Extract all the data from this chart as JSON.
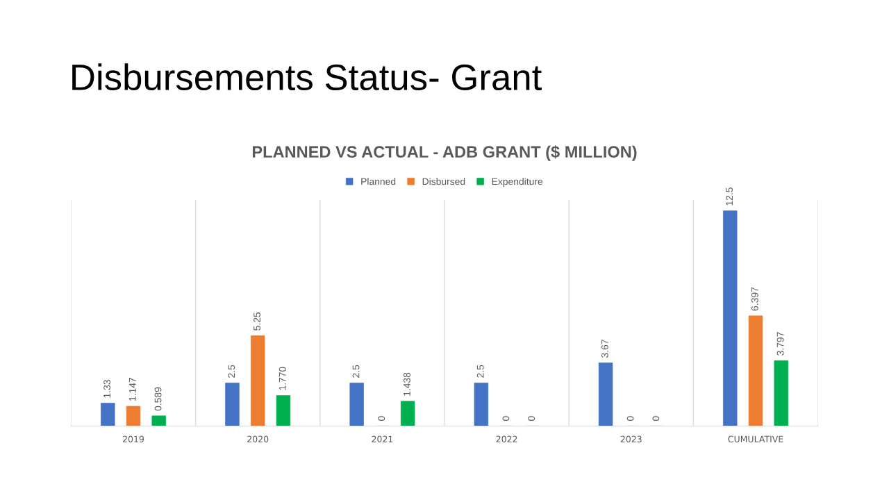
{
  "chart_data": {
    "type": "bar",
    "title": "Disbursements Status- Grant",
    "subtitle": "PLANNED VS ACTUAL - ADB GRANT ($ MILLION)",
    "categories": [
      "2019",
      "2020",
      "2021",
      "2022",
      "2023",
      "CUMULATIVE"
    ],
    "series": [
      {
        "name": "Planned",
        "color": "#4472c4",
        "values": [
          1.33,
          2.5,
          2.5,
          2.5,
          3.67,
          12.5
        ],
        "value_labels": [
          "1.33",
          "2.5",
          "2.5",
          "2.5",
          "3.67",
          "12.5"
        ]
      },
      {
        "name": "Disbursed",
        "color": "#ed7d31",
        "values": [
          1.147,
          5.25,
          0,
          0,
          0,
          6.397
        ],
        "value_labels": [
          "1.147",
          "5.25",
          "0",
          "0",
          "0",
          "6.397"
        ]
      },
      {
        "name": "Expenditure",
        "color": "#00b050",
        "values": [
          0.589,
          1.77,
          1.438,
          0,
          0,
          3.797
        ],
        "value_labels": [
          "0.589",
          "1.770",
          "1.438",
          "0",
          "0",
          "3.797"
        ]
      }
    ],
    "tick_labels": "x",
    "grid": "x",
    "legend": "top"
  }
}
